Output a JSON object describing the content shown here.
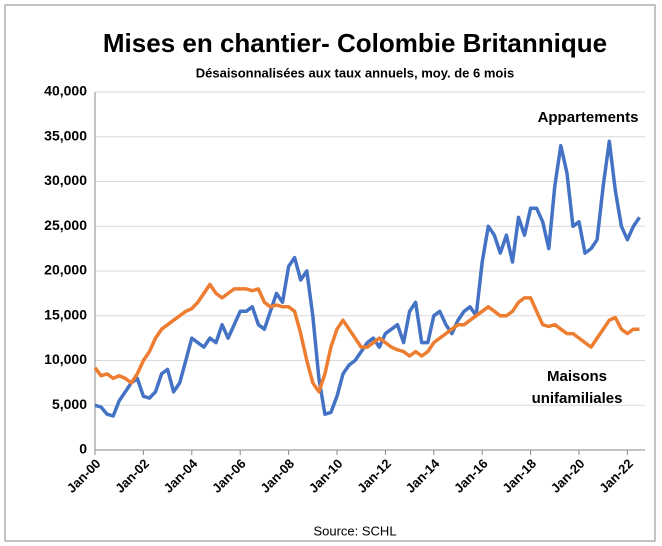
{
  "chart_data": {
    "type": "line",
    "title": "Mises en chantier- Colombie Britannique",
    "subtitle": "Désaisonnalisées aux taux annuels, moy. de 6 mois",
    "source": "Source: SCHL",
    "categories": [
      "Jan-00",
      null,
      null,
      null,
      null,
      null,
      null,
      null,
      "Jan-02",
      null,
      null,
      null,
      null,
      null,
      null,
      null,
      "Jan-04",
      null,
      null,
      null,
      null,
      null,
      null,
      null,
      "Jan-06",
      null,
      null,
      null,
      null,
      null,
      null,
      null,
      "Jan-08",
      null,
      null,
      null,
      null,
      null,
      null,
      null,
      "Jan-10",
      null,
      null,
      null,
      null,
      null,
      null,
      null,
      "Jan-12",
      null,
      null,
      null,
      null,
      null,
      null,
      null,
      "Jan-14",
      null,
      null,
      null,
      null,
      null,
      null,
      null,
      "Jan-16",
      null,
      null,
      null,
      null,
      null,
      null,
      null,
      "Jan-18",
      null,
      null,
      null,
      null,
      null,
      null,
      null,
      "Jan-20",
      null,
      null,
      null,
      null,
      null,
      null,
      null,
      "Jan-22",
      null,
      null
    ],
    "series": [
      {
        "name": "Appartements",
        "color": "#4472c4",
        "values": [
          5000,
          4800,
          4000,
          3800,
          5500,
          6500,
          7500,
          8000,
          6000,
          5800,
          6500,
          8500,
          9000,
          6500,
          7500,
          10000,
          12500,
          12000,
          11500,
          12500,
          12000,
          14000,
          12500,
          14000,
          15500,
          15500,
          16000,
          14000,
          13500,
          15500,
          17500,
          16500,
          20500,
          21500,
          19000,
          20000,
          15000,
          8000,
          4000,
          4200,
          6000,
          8500,
          9500,
          10000,
          11000,
          12000,
          12500,
          11500,
          13000,
          13500,
          14000,
          12000,
          15500,
          16500,
          12000,
          12000,
          15000,
          15500,
          14000,
          13000,
          14500,
          15500,
          16000,
          15000,
          21000,
          25000,
          24000,
          22000,
          24000,
          21000,
          26000,
          24000,
          27000,
          27000,
          25500,
          22500,
          29500,
          34000,
          31000,
          25000,
          25500,
          22000,
          22500,
          23500,
          29500,
          34500,
          29000,
          25000,
          23500,
          25000,
          26000
        ]
      },
      {
        "name": "Maisons unifamiliales",
        "color": "#ed7d31",
        "values": [
          9200,
          8300,
          8500,
          8000,
          8300,
          8000,
          7500,
          8500,
          10000,
          11000,
          12500,
          13500,
          14000,
          14500,
          15000,
          15500,
          15800,
          16500,
          17500,
          18500,
          17500,
          17000,
          17500,
          18000,
          18000,
          18000,
          17800,
          18000,
          16500,
          16000,
          16200,
          16000,
          16000,
          15500,
          13000,
          10000,
          7500,
          6500,
          8500,
          11500,
          13500,
          14500,
          13500,
          12500,
          11500,
          11500,
          12000,
          12500,
          12000,
          11500,
          11200,
          11000,
          10500,
          11000,
          10500,
          11000,
          12000,
          12500,
          13000,
          13500,
          14000,
          14000,
          14500,
          15000,
          15500,
          16000,
          15500,
          15000,
          15000,
          15500,
          16500,
          17000,
          17000,
          15500,
          14000,
          13800,
          14000,
          13500,
          13000,
          13000,
          12500,
          12000,
          11500,
          12500,
          13500,
          14500,
          14800,
          13500,
          13000,
          13500,
          13500
        ]
      }
    ],
    "ylim": [
      0,
      40000
    ],
    "yticks": [
      0,
      {
        "value": 5000,
        "label": "5,000"
      },
      {
        "value": 10000,
        "label": "10,000"
      },
      {
        "value": 15000,
        "label": "15,000"
      },
      {
        "value": 20000,
        "label": "20,000"
      },
      {
        "value": 25000,
        "label": "25,000"
      },
      {
        "value": 30000,
        "label": "30,000"
      },
      {
        "value": 35000,
        "label": "35,000"
      },
      {
        "value": 40000,
        "label": "40,000"
      }
    ],
    "grid": true
  }
}
